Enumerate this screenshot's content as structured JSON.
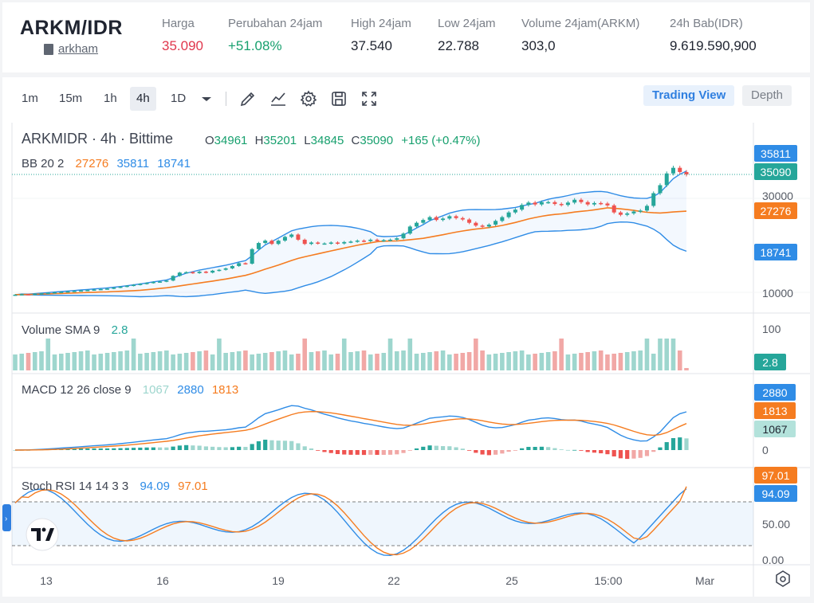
{
  "header": {
    "pair": "ARKM/IDR",
    "link": "arkham",
    "stats": [
      {
        "label": "Harga",
        "value": "35.090",
        "color": "red"
      },
      {
        "label": "Perubahan 24jam",
        "value": "+51.08%",
        "color": "green"
      },
      {
        "label": "High 24jam",
        "value": "37.540",
        "color": ""
      },
      {
        "label": "Low 24jam",
        "value": "22.788",
        "color": ""
      },
      {
        "label": "Volume 24jam(ARKM)",
        "value": "303,0",
        "color": ""
      },
      {
        "label": "24h Bab(IDR)",
        "value": "9.619.590,900",
        "color": ""
      }
    ]
  },
  "toolbar": {
    "timeframes": [
      "1m",
      "15m",
      "1h",
      "4h",
      "1D"
    ],
    "active": "4h",
    "icons": [
      "indicator-icon",
      "draw-line-icon",
      "chart-type-icon",
      "settings-icon",
      "save-icon",
      "fullscreen-icon"
    ],
    "view_trading": "Trading View",
    "view_depth": "Depth"
  },
  "chart_legend": {
    "symbol": "ARKMIDR · 4h · Bittime",
    "o_label": "O",
    "o": "34961",
    "h_label": "H",
    "h": "35201",
    "l_label": "L",
    "l": "34845",
    "c_label": "C",
    "c": "35090",
    "change": "+165 (+0.47%)",
    "bb_label": "BB 20 2",
    "bb_mid": "27276",
    "bb_up": "35811",
    "bb_low": "18741",
    "vol_label": "Volume SMA 9",
    "vol_val": "2.8",
    "macd_label": "MACD 12 26 close 9",
    "macd_hist": "1067",
    "macd_line": "2880",
    "macd_signal": "1813",
    "rsi_label": "Stoch RSI 14 14 3 3",
    "rsi_k": "94.09",
    "rsi_d": "97.01"
  },
  "axes": {
    "price_ticks": [
      "30000",
      "10000"
    ],
    "volume_ticks": [
      "100"
    ],
    "macd_ticks": [
      "0"
    ],
    "rsi_ticks": [
      "50.00",
      "0.00"
    ],
    "x_ticks": [
      "13",
      "16",
      "19",
      "22",
      "25",
      "15:00",
      "Mar"
    ]
  },
  "price_tags": {
    "bb_up": "35811",
    "last": "35090",
    "bb_mid": "27276",
    "bb_low": "18741",
    "volume": "2.8",
    "macd_line": "2880",
    "macd_signal": "1813",
    "macd_hist": "1067",
    "rsi_d": "97.01",
    "rsi_k": "94.09"
  },
  "colors": {
    "up": "#26a69a",
    "down": "#ef5350",
    "bb_band": "#2f8ce6",
    "bb_mid": "#f57c20",
    "macd": "#2f8ce6",
    "signal": "#f57c20",
    "label_blue": "#2f8ce6",
    "label_orange": "#f57c20"
  },
  "chart_data": {
    "type": "candlestick",
    "close": [
      9500,
      9600,
      9550,
      9700,
      9800,
      9900,
      10000,
      10100,
      10200,
      10300,
      10400,
      10500,
      10600,
      10700,
      10800,
      11000,
      11200,
      11400,
      11600,
      11800,
      12000,
      12200,
      12300,
      12500,
      13500,
      14200,
      14300,
      14100,
      14400,
      14200,
      14600,
      14800,
      15100,
      15600,
      16200,
      16100,
      19200,
      20500,
      21000,
      20300,
      21000,
      21800,
      22300,
      21200,
      20300,
      20600,
      20400,
      20400,
      20600,
      20400,
      20700,
      20800,
      21000,
      20900,
      21200,
      21000,
      21100,
      21200,
      21500,
      22500,
      24000,
      24800,
      25400,
      26000,
      25400,
      25700,
      26200,
      25800,
      25500,
      24800,
      24200,
      24000,
      24400,
      25200,
      26000,
      27000,
      27600,
      28600,
      29100,
      28700,
      29200,
      29200,
      28800,
      28600,
      29100,
      29700,
      29200,
      28700,
      29000,
      28900,
      28500,
      27000,
      26500,
      26800,
      27200,
      27400,
      28400,
      31100,
      32800,
      35300,
      36500,
      35600,
      35090
    ],
    "bb_upper_end": 35811,
    "bb_mid_end": 27276,
    "bb_lower_end": 18741,
    "volume_sma": 2.8,
    "macd_line_end": 2880,
    "macd_signal_end": 1813,
    "macd_hist_end": 1067,
    "stoch_k_end": 94.09,
    "stoch_d_end": 97.01
  }
}
